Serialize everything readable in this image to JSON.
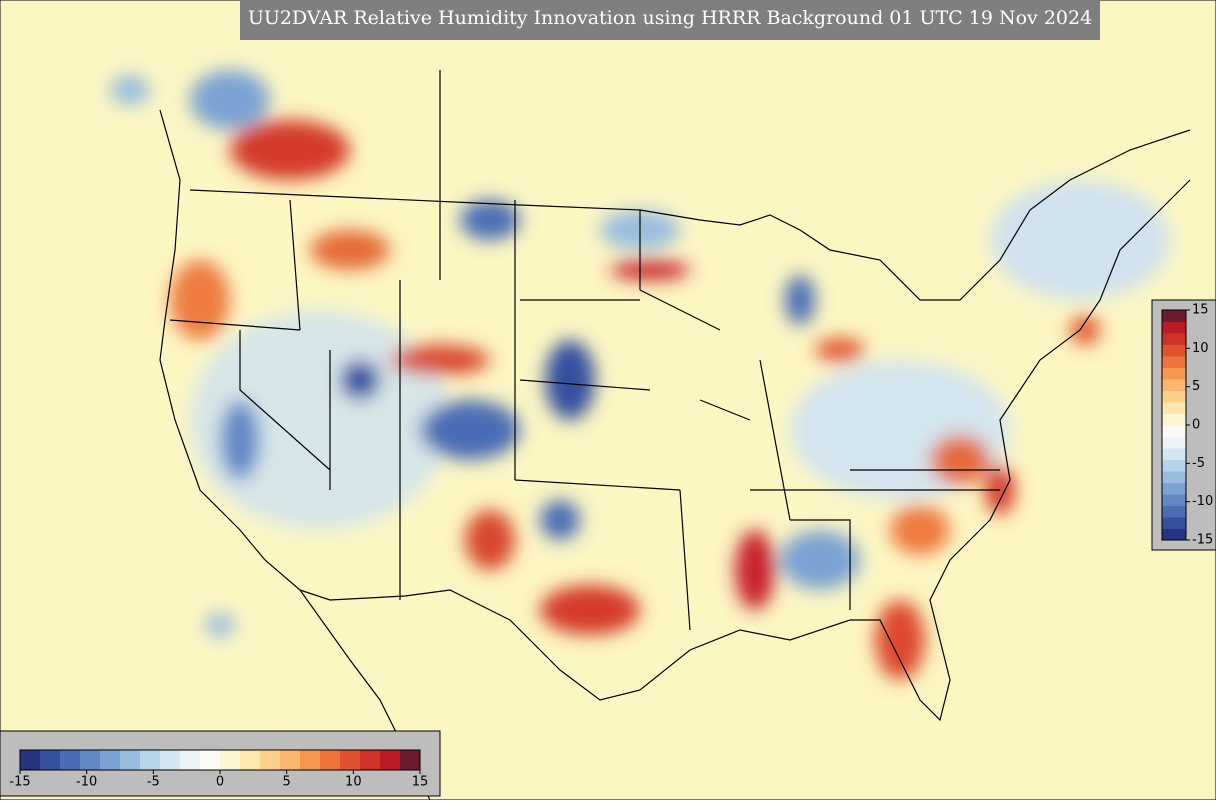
{
  "title": "UU2DVAR Relative Humidity Innovation using HRRR Background 01 UTC 19 Nov 2024",
  "colorbar": {
    "range": [
      -15,
      15
    ],
    "ticks": [
      -15,
      -10,
      -5,
      0,
      5,
      10,
      15
    ],
    "colors": [
      "#26347f",
      "#3650a0",
      "#4a6db5",
      "#5f88c5",
      "#7aa3d3",
      "#98bddf",
      "#b7d5ea",
      "#d4e7f1",
      "#ebf4f6",
      "#fbfbf4",
      "#fdf5d2",
      "#fde7ad",
      "#fdd08a",
      "#fbb56c",
      "#f7964f",
      "#ee743c",
      "#e0532e",
      "#cd3427",
      "#bc1b26",
      "#6b1b2e"
    ]
  }
}
